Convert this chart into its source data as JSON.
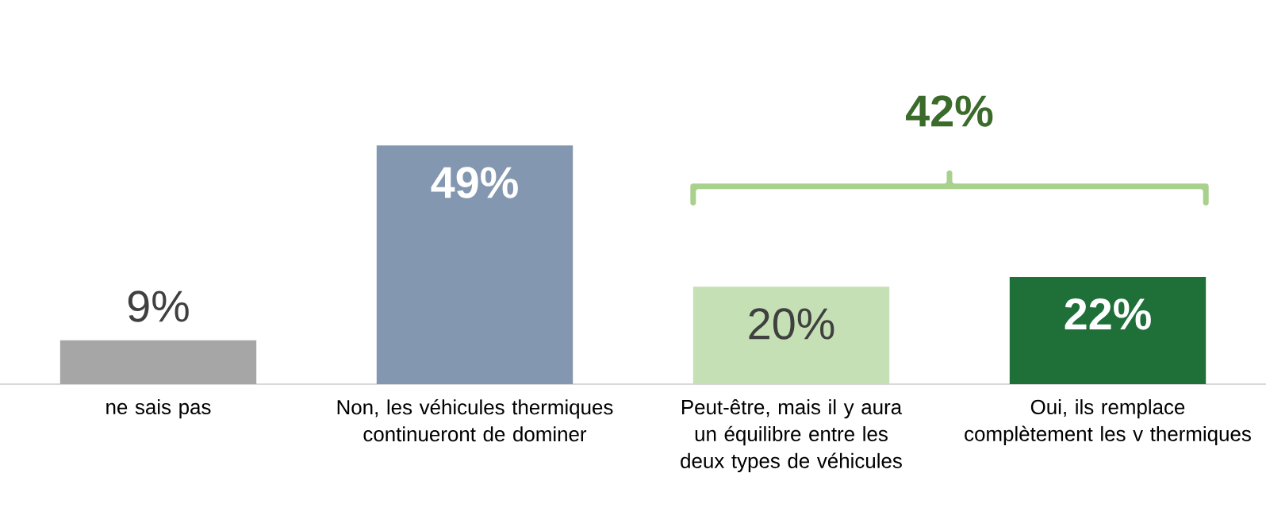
{
  "chart_data": {
    "type": "bar",
    "categories": [
      "ne sais pas",
      "Non, les véhicules thermiques continueront de dominer",
      "Peut-être, mais il y aura un équilibre entre les deux types de véhicules",
      "Oui, ils remplace complètement les v thermiques"
    ],
    "values": [
      9,
      49,
      20,
      22
    ],
    "colors": [
      "#a6a6a6",
      "#8497b0",
      "#c5e0b4",
      "#1e7038"
    ],
    "value_labels": [
      "9%",
      "49%",
      "20%",
      "22%"
    ],
    "annotations": [
      "42%"
    ]
  }
}
